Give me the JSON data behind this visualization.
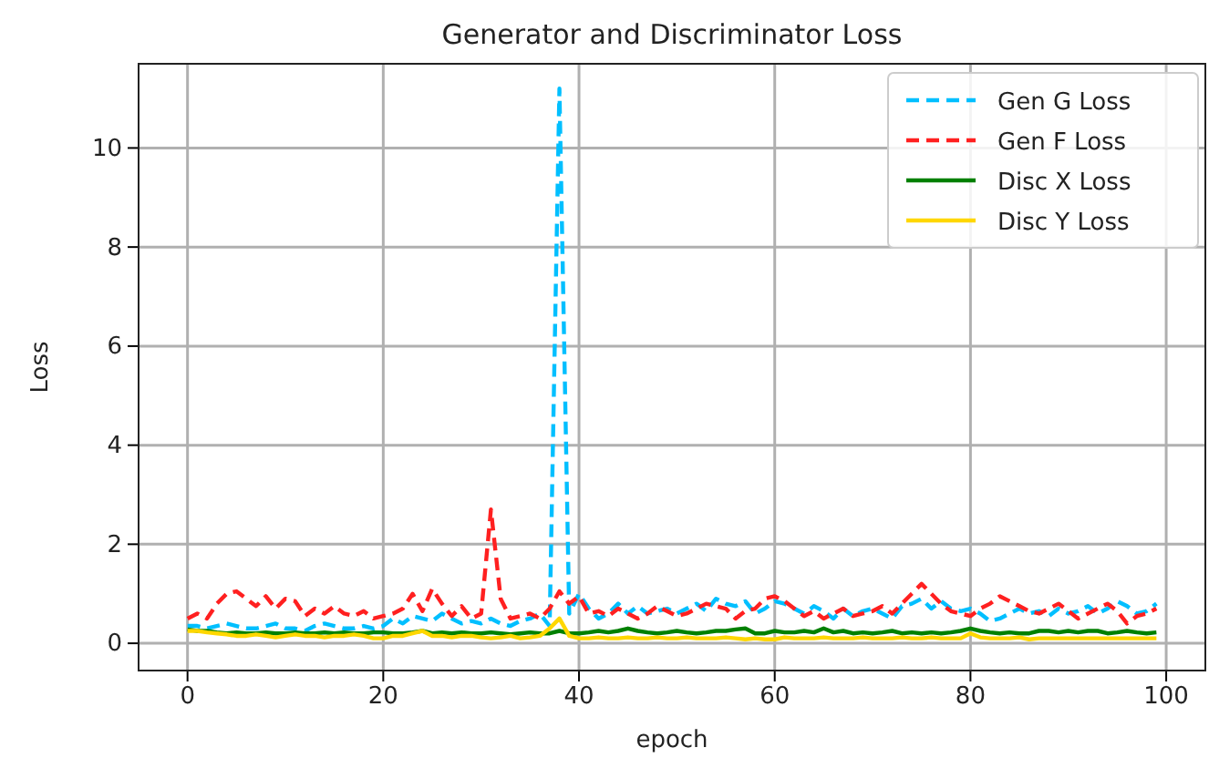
{
  "chart_data": {
    "type": "line",
    "title": "Generator and Discriminator Loss",
    "xlabel": "epoch",
    "ylabel": "Loss",
    "x": [
      0,
      1,
      2,
      3,
      4,
      5,
      6,
      7,
      8,
      9,
      10,
      11,
      12,
      13,
      14,
      15,
      16,
      17,
      18,
      19,
      20,
      21,
      22,
      23,
      24,
      25,
      26,
      27,
      28,
      29,
      30,
      31,
      32,
      33,
      34,
      35,
      36,
      37,
      38,
      39,
      40,
      41,
      42,
      43,
      44,
      45,
      46,
      47,
      48,
      49,
      50,
      51,
      52,
      53,
      54,
      55,
      56,
      57,
      58,
      59,
      60,
      61,
      62,
      63,
      64,
      65,
      66,
      67,
      68,
      69,
      70,
      71,
      72,
      73,
      74,
      75,
      76,
      77,
      78,
      79,
      80,
      81,
      82,
      83,
      84,
      85,
      86,
      87,
      88,
      89,
      90,
      91,
      92,
      93,
      94,
      95,
      96,
      97,
      98,
      99
    ],
    "series": [
      {
        "name": "Gen G Loss",
        "color": "#00bfff",
        "line_style": "dashed",
        "values": [
          0.35,
          0.35,
          0.3,
          0.35,
          0.4,
          0.35,
          0.3,
          0.3,
          0.35,
          0.4,
          0.3,
          0.3,
          0.25,
          0.35,
          0.4,
          0.35,
          0.3,
          0.3,
          0.35,
          0.3,
          0.35,
          0.5,
          0.4,
          0.55,
          0.5,
          0.45,
          0.6,
          0.5,
          0.4,
          0.45,
          0.4,
          0.5,
          0.4,
          0.35,
          0.45,
          0.5,
          0.6,
          0.35,
          11.2,
          0.6,
          1.0,
          0.7,
          0.5,
          0.6,
          0.8,
          0.6,
          0.75,
          0.6,
          0.65,
          0.7,
          0.6,
          0.7,
          0.8,
          0.65,
          0.9,
          0.8,
          0.75,
          0.85,
          0.6,
          0.7,
          0.85,
          0.8,
          0.7,
          0.6,
          0.75,
          0.65,
          0.5,
          0.7,
          0.55,
          0.65,
          0.7,
          0.6,
          0.5,
          0.75,
          0.8,
          0.9,
          0.7,
          0.85,
          0.7,
          0.65,
          0.7,
          0.6,
          0.45,
          0.5,
          0.6,
          0.7,
          0.6,
          0.65,
          0.55,
          0.7,
          0.6,
          0.65,
          0.75,
          0.6,
          0.7,
          0.85,
          0.75,
          0.6,
          0.65,
          0.8
        ]
      },
      {
        "name": "Gen F Loss",
        "color": "#ff2020",
        "line_style": "dashed",
        "values": [
          0.5,
          0.6,
          0.5,
          0.8,
          1.0,
          1.05,
          0.9,
          0.75,
          0.95,
          0.7,
          0.9,
          0.85,
          0.55,
          0.7,
          0.6,
          0.75,
          0.6,
          0.55,
          0.65,
          0.5,
          0.55,
          0.6,
          0.7,
          1.0,
          0.65,
          1.1,
          0.8,
          0.55,
          0.75,
          0.5,
          0.6,
          2.7,
          0.9,
          0.5,
          0.55,
          0.6,
          0.5,
          0.7,
          1.05,
          0.8,
          0.95,
          0.6,
          0.65,
          0.55,
          0.7,
          0.6,
          0.5,
          0.6,
          0.75,
          0.65,
          0.55,
          0.6,
          0.7,
          0.8,
          0.75,
          0.7,
          0.5,
          0.65,
          0.7,
          0.9,
          0.95,
          0.85,
          0.7,
          0.55,
          0.65,
          0.5,
          0.6,
          0.7,
          0.55,
          0.6,
          0.65,
          0.75,
          0.6,
          0.8,
          1.0,
          1.2,
          1.0,
          0.8,
          0.65,
          0.6,
          0.55,
          0.7,
          0.8,
          0.95,
          0.85,
          0.75,
          0.65,
          0.6,
          0.7,
          0.8,
          0.65,
          0.5,
          0.6,
          0.7,
          0.8,
          0.65,
          0.4,
          0.55,
          0.6,
          0.7
        ]
      },
      {
        "name": "Disc X Loss",
        "color": "#008000",
        "line_style": "solid",
        "values": [
          0.28,
          0.25,
          0.25,
          0.22,
          0.2,
          0.22,
          0.2,
          0.2,
          0.22,
          0.2,
          0.2,
          0.22,
          0.2,
          0.2,
          0.22,
          0.2,
          0.22,
          0.2,
          0.2,
          0.22,
          0.22,
          0.2,
          0.2,
          0.22,
          0.25,
          0.2,
          0.22,
          0.2,
          0.22,
          0.2,
          0.2,
          0.22,
          0.2,
          0.18,
          0.2,
          0.22,
          0.2,
          0.2,
          0.25,
          0.2,
          0.2,
          0.22,
          0.25,
          0.22,
          0.25,
          0.3,
          0.25,
          0.22,
          0.2,
          0.22,
          0.25,
          0.22,
          0.2,
          0.22,
          0.25,
          0.25,
          0.28,
          0.3,
          0.2,
          0.2,
          0.25,
          0.22,
          0.22,
          0.25,
          0.22,
          0.3,
          0.22,
          0.25,
          0.2,
          0.22,
          0.2,
          0.22,
          0.25,
          0.2,
          0.22,
          0.2,
          0.22,
          0.2,
          0.22,
          0.25,
          0.3,
          0.25,
          0.22,
          0.2,
          0.22,
          0.2,
          0.2,
          0.25,
          0.25,
          0.22,
          0.25,
          0.22,
          0.25,
          0.25,
          0.2,
          0.22,
          0.25,
          0.22,
          0.2,
          0.22
        ]
      },
      {
        "name": "Disc Y Loss",
        "color": "#ffd700",
        "line_style": "solid",
        "values": [
          0.25,
          0.25,
          0.22,
          0.2,
          0.18,
          0.15,
          0.15,
          0.18,
          0.15,
          0.12,
          0.15,
          0.18,
          0.15,
          0.15,
          0.12,
          0.15,
          0.15,
          0.18,
          0.15,
          0.1,
          0.1,
          0.15,
          0.15,
          0.2,
          0.25,
          0.15,
          0.15,
          0.12,
          0.15,
          0.15,
          0.12,
          0.1,
          0.12,
          0.15,
          0.1,
          0.12,
          0.15,
          0.3,
          0.5,
          0.15,
          0.1,
          0.1,
          0.12,
          0.1,
          0.1,
          0.12,
          0.1,
          0.1,
          0.12,
          0.1,
          0.1,
          0.12,
          0.1,
          0.1,
          0.1,
          0.12,
          0.1,
          0.08,
          0.1,
          0.08,
          0.08,
          0.12,
          0.1,
          0.1,
          0.1,
          0.12,
          0.1,
          0.1,
          0.1,
          0.12,
          0.1,
          0.1,
          0.1,
          0.12,
          0.1,
          0.1,
          0.12,
          0.1,
          0.1,
          0.1,
          0.2,
          0.12,
          0.1,
          0.1,
          0.1,
          0.12,
          0.08,
          0.1,
          0.1,
          0.1,
          0.1,
          0.1,
          0.1,
          0.1,
          0.1,
          0.1,
          0.1,
          0.1,
          0.1,
          0.1
        ]
      }
    ],
    "xlim": [
      -5,
      104
    ],
    "ylim": [
      -0.55,
      11.7
    ],
    "xticks": [
      0,
      20,
      40,
      60,
      80,
      100
    ],
    "yticks": [
      0,
      2,
      4,
      6,
      8,
      10
    ],
    "grid": true,
    "legend": "top right"
  }
}
